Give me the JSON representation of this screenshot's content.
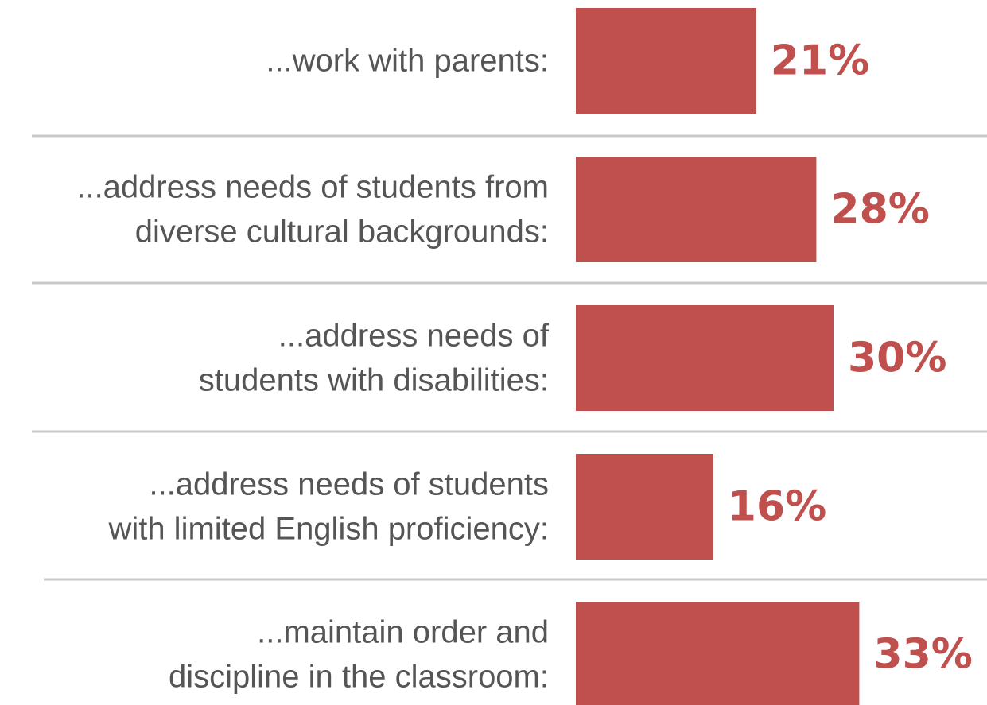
{
  "chart_data": {
    "type": "bar",
    "orientation": "horizontal",
    "categories": [
      [
        "...work with parents:"
      ],
      [
        "...address needs of students from",
        "diverse cultural backgrounds:"
      ],
      [
        "...address needs of",
        "students with disabilities:"
      ],
      [
        "...address needs of students",
        "with limited English proficiency:"
      ],
      [
        "...maintain order and",
        "discipline in the classroom:"
      ]
    ],
    "values": [
      21,
      28,
      30,
      16,
      33
    ],
    "value_labels": [
      "21%",
      "28%",
      "30%",
      "16%",
      "33%"
    ],
    "unit": "%",
    "grid": false,
    "legend": "none"
  },
  "colors": {
    "bar": "#c0504d",
    "value_text": "#c0504d",
    "label_text": "#555555",
    "divider": "#c8c8c8"
  }
}
